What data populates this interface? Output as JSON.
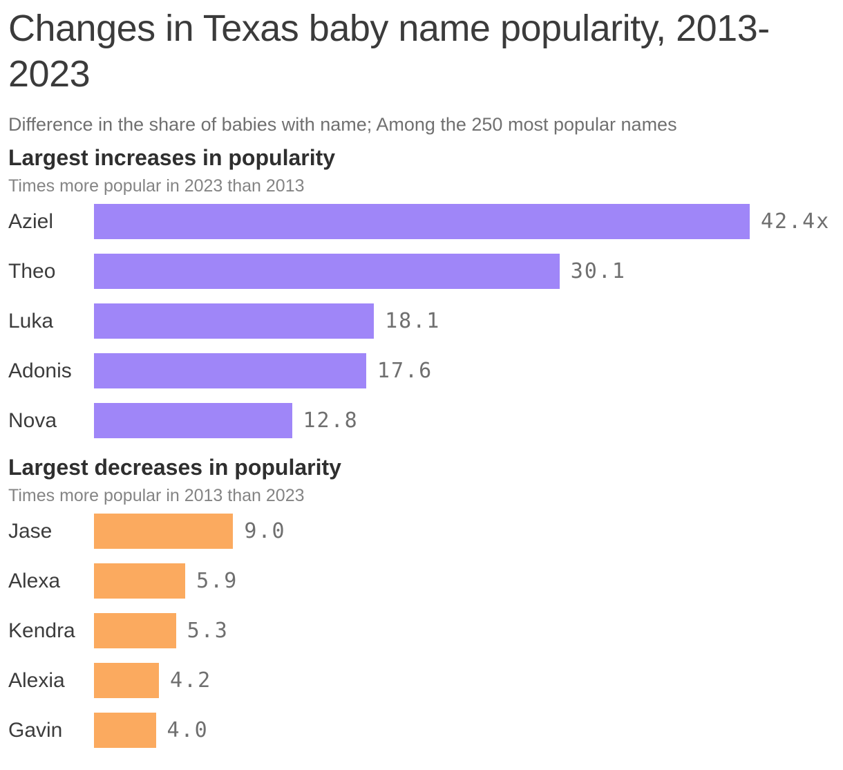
{
  "header": {
    "title": "Changes in Texas baby name popularity, 2013-2023",
    "subtitle": "Difference in the share of babies with name; Among the 250 most popular names"
  },
  "colors": {
    "increase_bar": "#9f86f8",
    "decrease_bar": "#fbaa5f",
    "title_text": "#3b3b3b",
    "muted_text": "#707070",
    "value_text": "#6f6f6f"
  },
  "chart_data": [
    {
      "type": "bar",
      "orientation": "horizontal",
      "title": "Largest increases in popularity",
      "subtitle": "Times more popular in 2023 than 2013",
      "categories": [
        "Aziel",
        "Theo",
        "Luka",
        "Adonis",
        "Nova"
      ],
      "values": [
        42.4,
        30.1,
        18.1,
        17.6,
        12.8
      ],
      "value_labels": [
        "42.4x",
        "30.1",
        "18.1",
        "17.6",
        "12.8"
      ],
      "bar_color": "#9f86f8",
      "xlim": [
        0,
        42.4
      ],
      "grid": false,
      "legend": false
    },
    {
      "type": "bar",
      "orientation": "horizontal",
      "title": "Largest decreases in popularity",
      "subtitle": "Times more popular in 2013 than 2023",
      "categories": [
        "Jase",
        "Alexa",
        "Kendra",
        "Alexia",
        "Gavin"
      ],
      "values": [
        9.0,
        5.9,
        5.3,
        4.2,
        4.0
      ],
      "value_labels": [
        "9.0",
        "5.9",
        "5.3",
        "4.2",
        "4.0"
      ],
      "bar_color": "#fbaa5f",
      "xlim": [
        0,
        42.4
      ],
      "grid": false,
      "legend": false
    }
  ]
}
